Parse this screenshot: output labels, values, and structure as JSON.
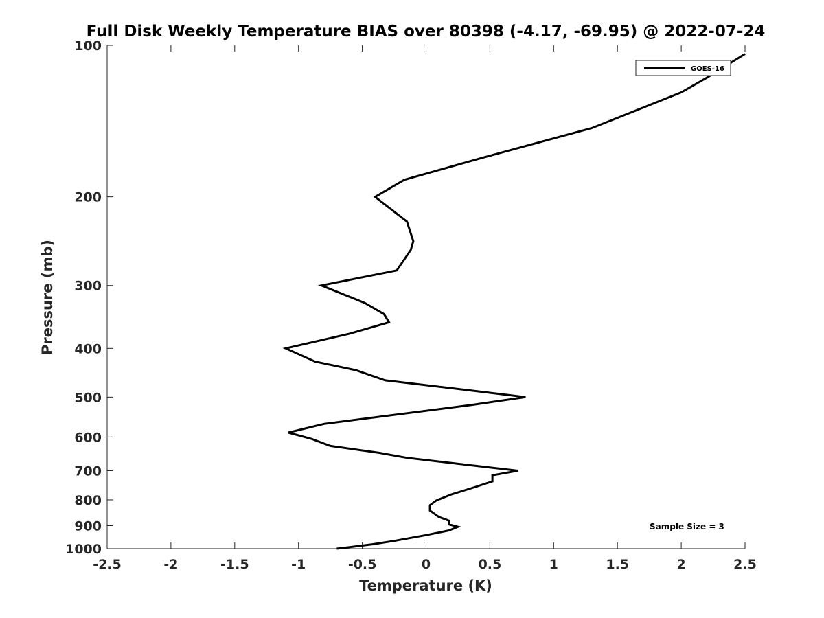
{
  "chart_data": {
    "type": "line",
    "title": "Full Disk Weekly Temperature BIAS over 80398 (-4.17, -69.95) @ 2022-07-24",
    "xlabel": "Temperature (K)",
    "ylabel": "Pressure (mb)",
    "xlim": [
      -2.5,
      2.5
    ],
    "ylim": [
      1000,
      100
    ],
    "y_scale": "log",
    "y_reversed": true,
    "grid": false,
    "x_ticks": [
      -2.5,
      -2,
      -1.5,
      -1,
      -0.5,
      0,
      0.5,
      1,
      1.5,
      2,
      2.5
    ],
    "x_tick_labels": [
      "-2.5",
      "-2",
      "-1.5",
      "-1",
      "-0.5",
      "0",
      "0.5",
      "1",
      "1.5",
      "2",
      "2.5"
    ],
    "y_ticks": [
      100,
      200,
      300,
      400,
      500,
      600,
      700,
      800,
      900,
      1000
    ],
    "y_tick_labels": [
      "100",
      "200",
      "300",
      "400",
      "500",
      "600",
      "700",
      "800",
      "900",
      "1000"
    ],
    "legend": {
      "location": "top-right",
      "entries": [
        "GOES-16"
      ]
    },
    "annotation": "Sample Size = 3",
    "series": [
      {
        "name": "GOES-16",
        "color": "#000000",
        "points": [
          {
            "x": 2.5,
            "p": 104
          },
          {
            "x": 2.2,
            "p": 116
          },
          {
            "x": 2.0,
            "p": 124
          },
          {
            "x": 1.3,
            "p": 146
          },
          {
            "x": 0.45,
            "p": 167
          },
          {
            "x": -0.17,
            "p": 185
          },
          {
            "x": -0.4,
            "p": 200
          },
          {
            "x": -0.15,
            "p": 224
          },
          {
            "x": -0.1,
            "p": 245
          },
          {
            "x": -0.12,
            "p": 255
          },
          {
            "x": -0.23,
            "p": 280
          },
          {
            "x": -0.82,
            "p": 300
          },
          {
            "x": -0.48,
            "p": 325
          },
          {
            "x": -0.33,
            "p": 342
          },
          {
            "x": -0.29,
            "p": 355
          },
          {
            "x": -0.6,
            "p": 374
          },
          {
            "x": -1.1,
            "p": 400
          },
          {
            "x": -0.87,
            "p": 425
          },
          {
            "x": -0.55,
            "p": 442
          },
          {
            "x": -0.32,
            "p": 463
          },
          {
            "x": 0.35,
            "p": 485
          },
          {
            "x": 0.78,
            "p": 500
          },
          {
            "x": 0.36,
            "p": 518
          },
          {
            "x": -0.8,
            "p": 565
          },
          {
            "x": -1.08,
            "p": 588
          },
          {
            "x": -0.9,
            "p": 605
          },
          {
            "x": -0.75,
            "p": 625
          },
          {
            "x": -0.37,
            "p": 645
          },
          {
            "x": -0.15,
            "p": 660
          },
          {
            "x": 0.72,
            "p": 700
          },
          {
            "x": 0.52,
            "p": 715
          },
          {
            "x": 0.52,
            "p": 735
          },
          {
            "x": 0.38,
            "p": 755
          },
          {
            "x": 0.2,
            "p": 780
          },
          {
            "x": 0.08,
            "p": 802
          },
          {
            "x": 0.03,
            "p": 820
          },
          {
            "x": 0.03,
            "p": 840
          },
          {
            "x": 0.1,
            "p": 865
          },
          {
            "x": 0.18,
            "p": 880
          },
          {
            "x": 0.18,
            "p": 895
          },
          {
            "x": 0.25,
            "p": 905
          },
          {
            "x": 0.18,
            "p": 920
          },
          {
            "x": 0.0,
            "p": 940
          },
          {
            "x": -0.25,
            "p": 965
          },
          {
            "x": -0.42,
            "p": 980
          },
          {
            "x": -0.7,
            "p": 1000
          }
        ]
      }
    ]
  }
}
